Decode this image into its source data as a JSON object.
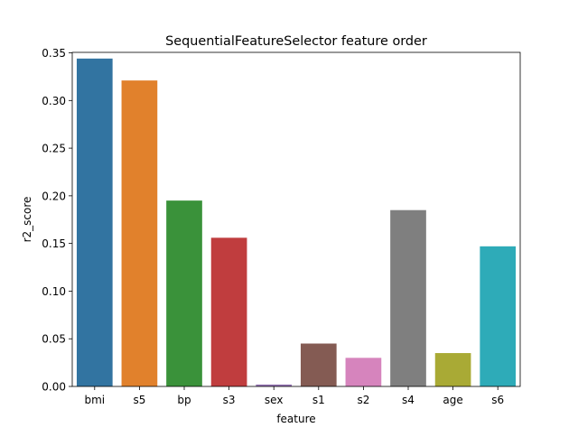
{
  "chart_data": {
    "type": "bar",
    "title": "SequentialFeatureSelector feature order",
    "xlabel": "feature",
    "ylabel": "r2_score",
    "categories": [
      "bmi",
      "s5",
      "bp",
      "s3",
      "sex",
      "s1",
      "s2",
      "s4",
      "age",
      "s6"
    ],
    "values": [
      0.344,
      0.321,
      0.195,
      0.156,
      0.002,
      0.045,
      0.03,
      0.185,
      0.035,
      0.147
    ],
    "colors": [
      "#3274a1",
      "#e1812c",
      "#3a923a",
      "#c03d3e",
      "#9372b2",
      "#845b53",
      "#d684bd",
      "#7f7f7f",
      "#a9aa35",
      "#2eabb8"
    ],
    "ylim": [
      0,
      0.3505
    ],
    "yticks": [
      0.0,
      0.05,
      0.1,
      0.15,
      0.2,
      0.25,
      0.3,
      0.35
    ],
    "ytick_labels": [
      "0.00",
      "0.05",
      "0.10",
      "0.15",
      "0.20",
      "0.25",
      "0.30",
      "0.35"
    ],
    "grid": false,
    "legend": "none"
  }
}
